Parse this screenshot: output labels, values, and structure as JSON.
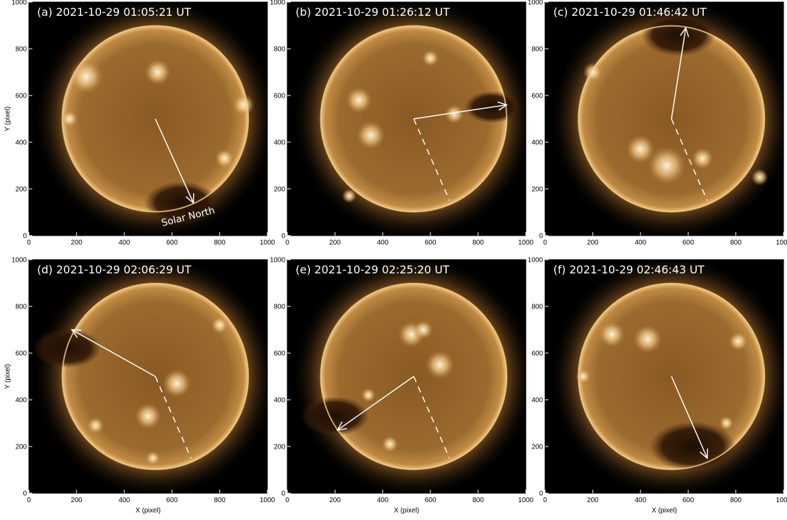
{
  "figure": {
    "panels": [
      {
        "title": "(a) 2021-10-29 01:05:21 UT",
        "annotation": "Solar North"
      },
      {
        "title": "(b) 2021-10-29 01:26:12 UT"
      },
      {
        "title": "(c) 2021-10-29 01:46:42 UT"
      },
      {
        "title": "(d) 2021-10-29 02:06:29 UT"
      },
      {
        "title": "(e) 2021-10-29 02:25:20 UT"
      },
      {
        "title": "(f) 2021-10-29 02:46:43 UT"
      }
    ],
    "axis": {
      "xlabel": "X (pixel)",
      "ylabel": "Y (pixel)",
      "xticks": [
        "0",
        "200",
        "400",
        "600",
        "800",
        "1000"
      ],
      "yticks": [
        "0",
        "200",
        "400",
        "600",
        "800",
        "1000"
      ]
    },
    "colors": {
      "background": "#000000",
      "disk": "#9a6a2c",
      "corona": "#d9a35a",
      "arrow": "#ffffff"
    }
  }
}
